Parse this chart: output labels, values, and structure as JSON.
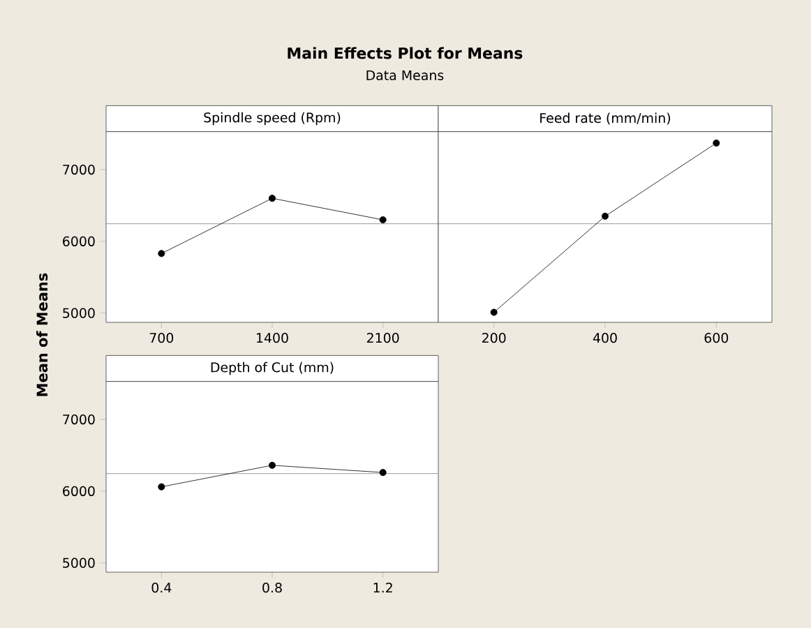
{
  "chart_data": [
    {
      "type": "line",
      "title": "Spindle speed (Rpm)",
      "ylabel": "Mean of Means",
      "annotations": [
        "**Main Effects Plot for Means**",
        "Data Means"
      ],
      "categories": [
        "700",
        "1400",
        "2100"
      ],
      "values": [
        5830,
        6600,
        6300
      ],
      "color": "#000000",
      "marker": "circle",
      "ylim": [
        4870,
        7530
      ],
      "yticks": [
        5000,
        6000,
        7000
      ],
      "ref_lines": [
        {
          "axis": "y",
          "value": 6245,
          "color": "#808080"
        }
      ],
      "grid": false
    },
    {
      "type": "line",
      "title": "Feed rate (mm/min)",
      "categories": [
        "200",
        "400",
        "600"
      ],
      "values": [
        5010,
        6350,
        7370
      ],
      "color": "#000000",
      "marker": "circle",
      "ylim": [
        4870,
        7530
      ],
      "yticks": [
        5000,
        6000,
        7000
      ],
      "ref_lines": [
        {
          "axis": "y",
          "value": 6245,
          "color": "#808080"
        }
      ],
      "tick_labels": "x",
      "grid": false
    },
    {
      "type": "line",
      "title": "Depth of Cut (mm)",
      "categories": [
        "0.4",
        "0.8",
        "1.2"
      ],
      "values": [
        6060,
        6360,
        6260
      ],
      "color": "#000000",
      "marker": "circle",
      "ylim": [
        4870,
        7530
      ],
      "yticks": [
        5000,
        6000,
        7000
      ],
      "ref_lines": [
        {
          "axis": "y",
          "value": 6245,
          "color": "#808080"
        }
      ],
      "grid": false
    }
  ]
}
